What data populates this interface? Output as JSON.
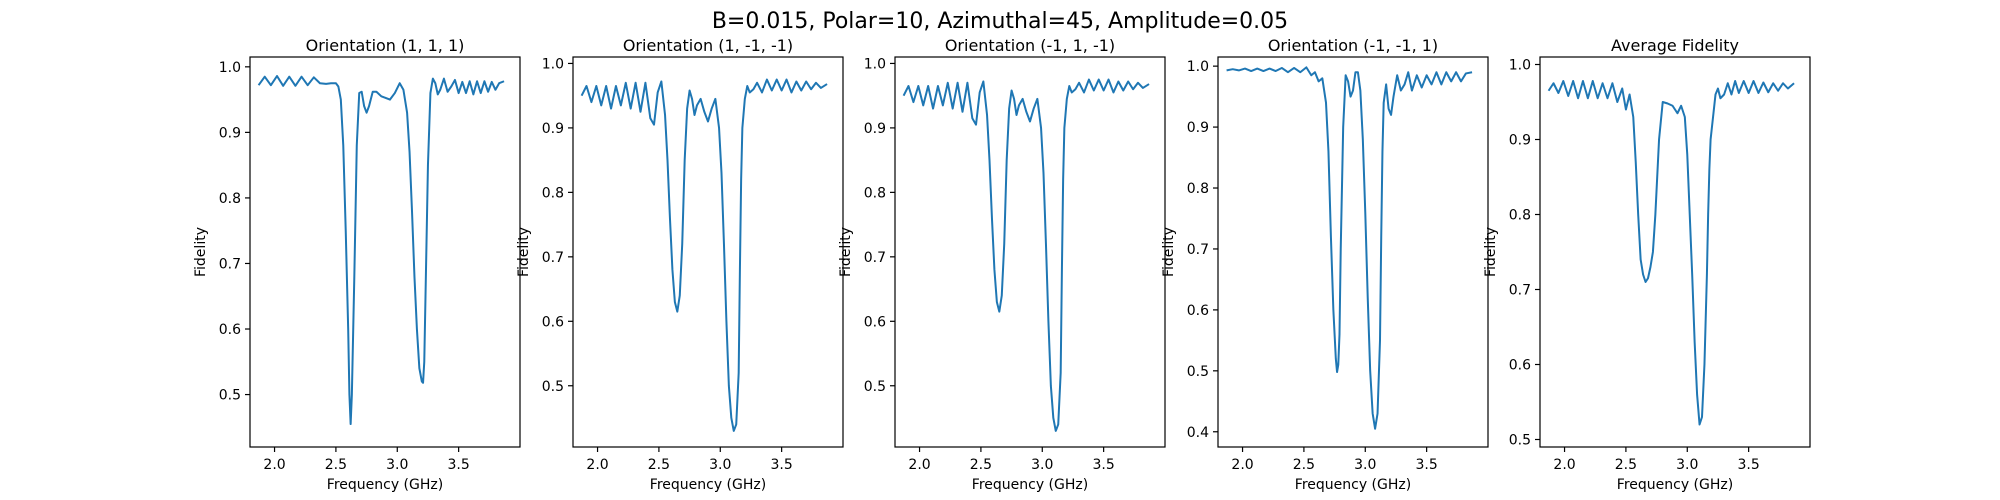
{
  "figure": {
    "suptitle": "B=0.015, Polar=10, Azimuthal=45, Amplitude=0.05"
  },
  "colors": {
    "line": "#1f77b4",
    "axes": "#000000",
    "background": "#ffffff"
  },
  "chart_data": [
    {
      "type": "line",
      "title": "Orientation (1, 1, 1)",
      "xlabel": "Frequency (GHz)",
      "ylabel": "Fidelity",
      "xlim": [
        1.8,
        4.0
      ],
      "ylim": [
        0.42,
        1.015
      ],
      "xticks": [
        2.0,
        2.5,
        3.0,
        3.5
      ],
      "xtick_labels": [
        "2.0",
        "2.5",
        "3.0",
        "3.5"
      ],
      "yticks": [
        0.5,
        0.6,
        0.7,
        0.8,
        0.9,
        1.0
      ],
      "ytick_labels": [
        "0.5",
        "0.6",
        "0.7",
        "0.8",
        "0.9",
        "1.0"
      ],
      "grid": false,
      "series": [
        {
          "x": [
            1.87,
            1.92,
            1.97,
            2.02,
            2.07,
            2.12,
            2.17,
            2.22,
            2.27,
            2.32,
            2.37,
            2.42,
            2.46,
            2.5,
            2.52,
            2.54,
            2.56,
            2.58,
            2.6,
            2.61,
            2.62,
            2.63,
            2.65,
            2.67,
            2.69,
            2.71,
            2.73,
            2.75,
            2.77,
            2.8,
            2.83,
            2.87,
            2.9,
            2.94,
            2.98,
            3.02,
            3.05,
            3.08,
            3.1,
            3.12,
            3.14,
            3.16,
            3.18,
            3.2,
            3.21,
            3.22,
            3.23,
            3.25,
            3.27,
            3.29,
            3.31,
            3.33,
            3.35,
            3.38,
            3.41,
            3.44,
            3.47,
            3.5,
            3.53,
            3.56,
            3.59,
            3.62,
            3.65,
            3.68,
            3.71,
            3.74,
            3.77,
            3.8,
            3.83,
            3.87
          ],
          "y": [
            0.972,
            0.985,
            0.972,
            0.986,
            0.971,
            0.985,
            0.971,
            0.985,
            0.972,
            0.984,
            0.975,
            0.974,
            0.975,
            0.975,
            0.97,
            0.95,
            0.88,
            0.75,
            0.6,
            0.5,
            0.455,
            0.5,
            0.68,
            0.88,
            0.96,
            0.962,
            0.94,
            0.93,
            0.94,
            0.962,
            0.962,
            0.955,
            0.953,
            0.95,
            0.96,
            0.975,
            0.965,
            0.93,
            0.87,
            0.78,
            0.68,
            0.6,
            0.54,
            0.52,
            0.518,
            0.55,
            0.65,
            0.85,
            0.96,
            0.982,
            0.975,
            0.958,
            0.965,
            0.982,
            0.962,
            0.97,
            0.98,
            0.96,
            0.977,
            0.96,
            0.978,
            0.958,
            0.978,
            0.96,
            0.978,
            0.962,
            0.977,
            0.965,
            0.975,
            0.978
          ]
        }
      ]
    },
    {
      "type": "line",
      "title": "Orientation (1, -1, -1)",
      "xlabel": "Frequency (GHz)",
      "ylabel": "Fidelity",
      "xlim": [
        1.8,
        4.0
      ],
      "ylim": [
        0.405,
        1.01
      ],
      "xticks": [
        2.0,
        2.5,
        3.0,
        3.5
      ],
      "xtick_labels": [
        "2.0",
        "2.5",
        "3.0",
        "3.5"
      ],
      "yticks": [
        0.5,
        0.6,
        0.7,
        0.8,
        0.9,
        1.0
      ],
      "ytick_labels": [
        "0.5",
        "0.6",
        "0.7",
        "0.8",
        "0.9",
        "1.0"
      ],
      "grid": false,
      "series": [
        {
          "x": [
            1.87,
            1.91,
            1.95,
            1.99,
            2.03,
            2.07,
            2.11,
            2.15,
            2.19,
            2.23,
            2.27,
            2.31,
            2.35,
            2.39,
            2.43,
            2.46,
            2.49,
            2.52,
            2.55,
            2.57,
            2.59,
            2.61,
            2.63,
            2.65,
            2.67,
            2.69,
            2.71,
            2.73,
            2.75,
            2.77,
            2.79,
            2.81,
            2.84,
            2.87,
            2.9,
            2.93,
            2.96,
            2.99,
            3.01,
            3.03,
            3.05,
            3.07,
            3.09,
            3.11,
            3.13,
            3.15,
            3.16,
            3.17,
            3.18,
            3.2,
            3.22,
            3.24,
            3.27,
            3.3,
            3.34,
            3.38,
            3.42,
            3.46,
            3.5,
            3.54,
            3.58,
            3.62,
            3.66,
            3.7,
            3.74,
            3.78,
            3.82,
            3.87
          ],
          "y": [
            0.95,
            0.965,
            0.94,
            0.965,
            0.935,
            0.965,
            0.93,
            0.965,
            0.935,
            0.97,
            0.93,
            0.97,
            0.925,
            0.97,
            0.915,
            0.905,
            0.955,
            0.972,
            0.92,
            0.85,
            0.76,
            0.68,
            0.63,
            0.615,
            0.64,
            0.72,
            0.85,
            0.93,
            0.958,
            0.945,
            0.92,
            0.935,
            0.945,
            0.925,
            0.91,
            0.93,
            0.945,
            0.9,
            0.83,
            0.72,
            0.6,
            0.5,
            0.45,
            0.43,
            0.44,
            0.52,
            0.68,
            0.82,
            0.9,
            0.945,
            0.965,
            0.955,
            0.96,
            0.97,
            0.955,
            0.975,
            0.958,
            0.975,
            0.958,
            0.975,
            0.955,
            0.972,
            0.958,
            0.972,
            0.96,
            0.97,
            0.962,
            0.968
          ]
        }
      ]
    },
    {
      "type": "line",
      "title": "Orientation (-1, 1, -1)",
      "xlabel": "Frequency (GHz)",
      "ylabel": "Fidelity",
      "xlim": [
        1.8,
        4.0
      ],
      "ylim": [
        0.405,
        1.01
      ],
      "xticks": [
        2.0,
        2.5,
        3.0,
        3.5
      ],
      "xtick_labels": [
        "2.0",
        "2.5",
        "3.0",
        "3.5"
      ],
      "yticks": [
        0.5,
        0.6,
        0.7,
        0.8,
        0.9,
        1.0
      ],
      "ytick_labels": [
        "0.5",
        "0.6",
        "0.7",
        "0.8",
        "0.9",
        "1.0"
      ],
      "grid": false,
      "series": [
        {
          "x": [
            1.87,
            1.91,
            1.95,
            1.99,
            2.03,
            2.07,
            2.11,
            2.15,
            2.19,
            2.23,
            2.27,
            2.31,
            2.35,
            2.39,
            2.43,
            2.46,
            2.49,
            2.52,
            2.55,
            2.57,
            2.59,
            2.61,
            2.63,
            2.65,
            2.67,
            2.69,
            2.71,
            2.73,
            2.75,
            2.77,
            2.79,
            2.81,
            2.84,
            2.87,
            2.9,
            2.93,
            2.96,
            2.99,
            3.01,
            3.03,
            3.05,
            3.07,
            3.09,
            3.11,
            3.13,
            3.15,
            3.16,
            3.17,
            3.18,
            3.2,
            3.22,
            3.24,
            3.27,
            3.3,
            3.34,
            3.38,
            3.42,
            3.46,
            3.5,
            3.54,
            3.58,
            3.62,
            3.66,
            3.7,
            3.74,
            3.78,
            3.82,
            3.87
          ],
          "y": [
            0.95,
            0.965,
            0.94,
            0.965,
            0.935,
            0.965,
            0.93,
            0.965,
            0.935,
            0.97,
            0.93,
            0.97,
            0.925,
            0.97,
            0.915,
            0.905,
            0.955,
            0.972,
            0.92,
            0.85,
            0.76,
            0.68,
            0.63,
            0.615,
            0.64,
            0.72,
            0.85,
            0.93,
            0.958,
            0.945,
            0.92,
            0.935,
            0.945,
            0.925,
            0.91,
            0.93,
            0.945,
            0.9,
            0.83,
            0.72,
            0.6,
            0.5,
            0.45,
            0.43,
            0.44,
            0.52,
            0.68,
            0.82,
            0.9,
            0.945,
            0.965,
            0.955,
            0.96,
            0.97,
            0.955,
            0.975,
            0.958,
            0.975,
            0.958,
            0.975,
            0.955,
            0.972,
            0.958,
            0.972,
            0.96,
            0.97,
            0.962,
            0.968
          ]
        }
      ]
    },
    {
      "type": "line",
      "title": "Orientation (-1, -1, 1)",
      "xlabel": "Frequency (GHz)",
      "ylabel": "Fidelity",
      "xlim": [
        1.8,
        4.0
      ],
      "ylim": [
        0.375,
        1.015
      ],
      "xticks": [
        2.0,
        2.5,
        3.0,
        3.5
      ],
      "xtick_labels": [
        "2.0",
        "2.5",
        "3.0",
        "3.5"
      ],
      "yticks": [
        0.4,
        0.5,
        0.6,
        0.7,
        0.8,
        0.9,
        1.0
      ],
      "ytick_labels": [
        "0.4",
        "0.5",
        "0.6",
        "0.7",
        "0.8",
        "0.9",
        "1.0"
      ],
      "grid": false,
      "series": [
        {
          "x": [
            1.87,
            1.92,
            1.97,
            2.02,
            2.07,
            2.12,
            2.17,
            2.22,
            2.27,
            2.32,
            2.37,
            2.42,
            2.47,
            2.52,
            2.56,
            2.59,
            2.62,
            2.65,
            2.68,
            2.7,
            2.72,
            2.74,
            2.76,
            2.77,
            2.78,
            2.79,
            2.8,
            2.82,
            2.84,
            2.86,
            2.88,
            2.9,
            2.92,
            2.94,
            2.96,
            2.98,
            3.0,
            3.02,
            3.04,
            3.06,
            3.08,
            3.1,
            3.12,
            3.13,
            3.14,
            3.15,
            3.17,
            3.19,
            3.21,
            3.23,
            3.26,
            3.29,
            3.32,
            3.35,
            3.38,
            3.42,
            3.46,
            3.5,
            3.54,
            3.58,
            3.62,
            3.66,
            3.7,
            3.74,
            3.78,
            3.82,
            3.87
          ],
          "y": [
            0.993,
            0.995,
            0.993,
            0.996,
            0.992,
            0.996,
            0.992,
            0.996,
            0.992,
            0.997,
            0.99,
            0.997,
            0.99,
            0.998,
            0.985,
            0.99,
            0.975,
            0.98,
            0.94,
            0.86,
            0.72,
            0.6,
            0.52,
            0.498,
            0.51,
            0.56,
            0.7,
            0.9,
            0.985,
            0.975,
            0.95,
            0.96,
            0.99,
            0.99,
            0.96,
            0.88,
            0.76,
            0.62,
            0.5,
            0.43,
            0.405,
            0.43,
            0.55,
            0.72,
            0.86,
            0.94,
            0.97,
            0.93,
            0.92,
            0.95,
            0.985,
            0.96,
            0.97,
            0.99,
            0.96,
            0.985,
            0.965,
            0.985,
            0.97,
            0.99,
            0.97,
            0.99,
            0.975,
            0.99,
            0.975,
            0.988,
            0.99
          ]
        }
      ]
    },
    {
      "type": "line",
      "title": "Average Fidelity",
      "xlabel": "Frequency (GHz)",
      "ylabel": "Fidelity",
      "xlim": [
        1.8,
        4.0
      ],
      "ylim": [
        0.49,
        1.01
      ],
      "xticks": [
        2.0,
        2.5,
        3.0,
        3.5
      ],
      "xtick_labels": [
        "2.0",
        "2.5",
        "3.0",
        "3.5"
      ],
      "yticks": [
        0.5,
        0.6,
        0.7,
        0.8,
        0.9,
        1.0
      ],
      "ytick_labels": [
        "0.5",
        "0.6",
        "0.7",
        "0.8",
        "0.9",
        "1.0"
      ],
      "grid": false,
      "series": [
        {
          "x": [
            1.87,
            1.91,
            1.95,
            1.99,
            2.03,
            2.07,
            2.11,
            2.15,
            2.19,
            2.23,
            2.27,
            2.31,
            2.35,
            2.39,
            2.43,
            2.47,
            2.5,
            2.53,
            2.56,
            2.58,
            2.6,
            2.62,
            2.64,
            2.66,
            2.68,
            2.7,
            2.72,
            2.74,
            2.77,
            2.8,
            2.84,
            2.88,
            2.92,
            2.95,
            2.98,
            3.0,
            3.02,
            3.04,
            3.06,
            3.08,
            3.1,
            3.12,
            3.14,
            3.16,
            3.17,
            3.18,
            3.19,
            3.21,
            3.23,
            3.25,
            3.27,
            3.3,
            3.33,
            3.36,
            3.39,
            3.42,
            3.46,
            3.5,
            3.54,
            3.58,
            3.62,
            3.66,
            3.7,
            3.74,
            3.78,
            3.82,
            3.87
          ],
          "y": [
            0.965,
            0.975,
            0.962,
            0.978,
            0.958,
            0.978,
            0.955,
            0.978,
            0.955,
            0.978,
            0.955,
            0.975,
            0.955,
            0.975,
            0.95,
            0.968,
            0.94,
            0.96,
            0.93,
            0.87,
            0.8,
            0.74,
            0.72,
            0.71,
            0.715,
            0.73,
            0.75,
            0.8,
            0.9,
            0.95,
            0.948,
            0.945,
            0.935,
            0.945,
            0.93,
            0.88,
            0.8,
            0.72,
            0.63,
            0.56,
            0.52,
            0.53,
            0.6,
            0.72,
            0.8,
            0.86,
            0.9,
            0.93,
            0.96,
            0.968,
            0.955,
            0.96,
            0.975,
            0.96,
            0.978,
            0.962,
            0.978,
            0.962,
            0.978,
            0.962,
            0.976,
            0.963,
            0.975,
            0.965,
            0.975,
            0.968,
            0.975
          ]
        }
      ]
    }
  ]
}
